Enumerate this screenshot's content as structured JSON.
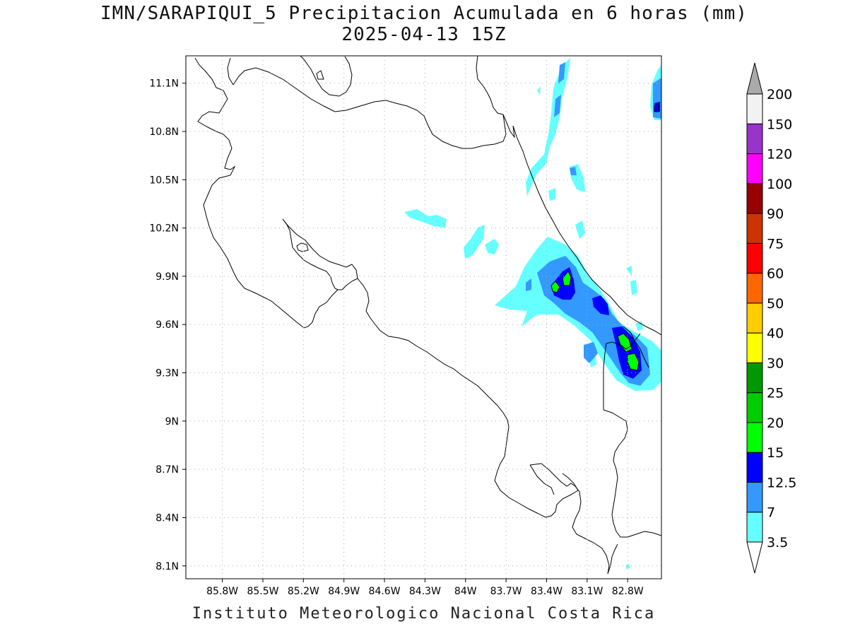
{
  "title": {
    "line1": "IMN/SARAPIQUI_5 Precipitacion Acumulada en 6 horas (mm)",
    "line2": "2025-04-13 15Z"
  },
  "footer": "Instituto Meteorologico Nacional Costa Rica",
  "map": {
    "lon_range": [
      -86.07,
      -82.55
    ],
    "lat_range": [
      8.02,
      11.27
    ],
    "lon_ticks": [
      {
        "value": -85.8,
        "label": "85.8W"
      },
      {
        "value": -85.5,
        "label": "85.5W"
      },
      {
        "value": -85.2,
        "label": "85.2W"
      },
      {
        "value": -84.9,
        "label": "84.9W"
      },
      {
        "value": -84.6,
        "label": "84.6W"
      },
      {
        "value": -84.3,
        "label": "84.3W"
      },
      {
        "value": -84.0,
        "label": "84W"
      },
      {
        "value": -83.7,
        "label": "83.7W"
      },
      {
        "value": -83.4,
        "label": "83.4W"
      },
      {
        "value": -83.1,
        "label": "83.1W"
      },
      {
        "value": -82.8,
        "label": "82.8W"
      }
    ],
    "lat_ticks": [
      {
        "value": 8.1,
        "label": "8.1N"
      },
      {
        "value": 8.4,
        "label": "8.4N"
      },
      {
        "value": 8.7,
        "label": "8.7N"
      },
      {
        "value": 9.0,
        "label": "9N"
      },
      {
        "value": 9.3,
        "label": "9.3N"
      },
      {
        "value": 9.6,
        "label": "9.6N"
      },
      {
        "value": 9.9,
        "label": "9.9N"
      },
      {
        "value": 10.2,
        "label": "10.2N"
      },
      {
        "value": 10.5,
        "label": "10.5N"
      },
      {
        "value": 10.8,
        "label": "10.8N"
      },
      {
        "value": 11.1,
        "label": "11.1N"
      }
    ],
    "grid": true,
    "colorbar": {
      "levels": [
        "3.5",
        "7",
        "12.5",
        "15",
        "20",
        "25",
        "30",
        "40",
        "50",
        "60",
        "75",
        "90",
        "100",
        "120",
        "150",
        "200"
      ],
      "colors": [
        "#66ffff",
        "#3399ff",
        "#0000ff",
        "#00ff00",
        "#00cc00",
        "#009900",
        "#ffff00",
        "#ffcc00",
        "#ff6600",
        "#ff0000",
        "#cc3300",
        "#990000",
        "#ff00ff",
        "#9933cc",
        "#f2f2f2"
      ],
      "over_color": "#aaaaaa",
      "under_color": "#ffffff"
    }
  }
}
